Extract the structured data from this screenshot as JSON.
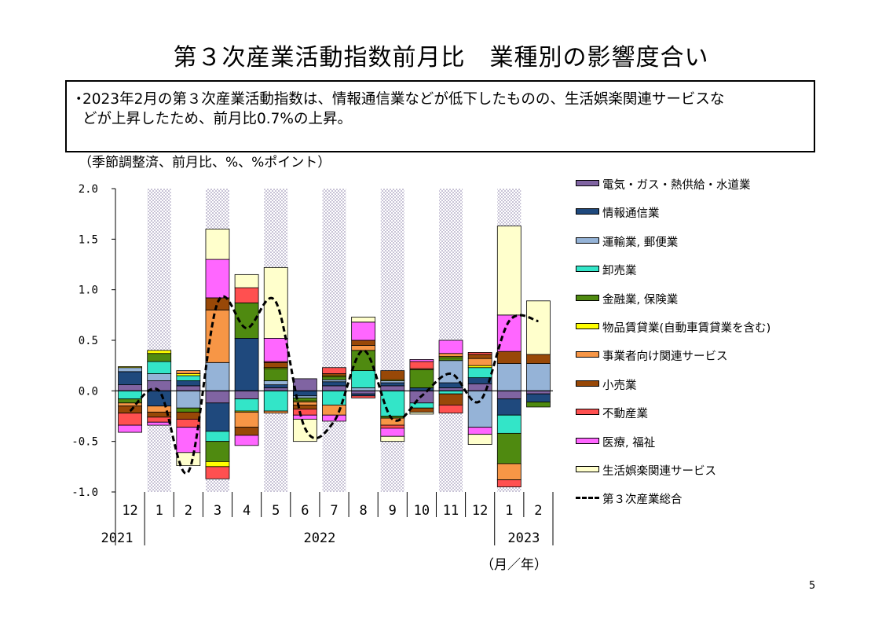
{
  "page": {
    "title": "第３次産業活動指数前月比　業種別の影響度合い",
    "summary_bullet": "・",
    "summary_line1": "2023年2月の第３次産業活動指数は、情報通信業などが低下したものの、生活娯楽関連サービスな",
    "summary_line2": "どが上昇したため、前月比0.7%の上昇。",
    "unit_label": "（季節調整済、前月比、%、%ポイント）",
    "month_unit": "（月／年）",
    "page_number": "5"
  },
  "chart_data": {
    "type": "bar",
    "stacked": true,
    "ylim": [
      -1.0,
      2.0
    ],
    "yticks": [
      "2.0",
      "1.5",
      "1.0",
      "0.5",
      "0.0",
      "-0.5",
      "-1.0"
    ],
    "ytick_values": [
      2.0,
      1.5,
      1.0,
      0.5,
      0.0,
      -0.5,
      -1.0
    ],
    "categories": [
      "12",
      "1",
      "2",
      "3",
      "4",
      "5",
      "6",
      "7",
      "8",
      "9",
      "10",
      "11",
      "12",
      "1",
      "2"
    ],
    "years": [
      {
        "label": "2021",
        "from": 0,
        "to": 0
      },
      {
        "label": "2022",
        "from": 1,
        "to": 12
      },
      {
        "label": "2023",
        "from": 13,
        "to": 14
      }
    ],
    "shaded_months": [
      1,
      3,
      5,
      7,
      9,
      11,
      13
    ],
    "legend_placement": "right",
    "series": [
      {
        "name": "電気・ガス・熱供給・水道業",
        "color": "#8064a2",
        "values": [
          0.06,
          0.1,
          0.05,
          -0.12,
          -0.08,
          0.03,
          0.12,
          0.05,
          -0.03,
          0.05,
          -0.12,
          0.03,
          0.07,
          -0.08,
          -0.03
        ]
      },
      {
        "name": "情報通信業",
        "color": "#1f497d",
        "values": [
          0.13,
          -0.15,
          0.05,
          -0.28,
          0.52,
          0.03,
          -0.05,
          0.04,
          -0.02,
          0.03,
          0.03,
          0.05,
          0.06,
          -0.16,
          -0.08
        ]
      },
      {
        "name": "運輸業, 郵便業",
        "color": "#95b3d7",
        "values": [
          0.04,
          0.07,
          -0.17,
          0.28,
          0.0,
          0.04,
          -0.02,
          0.02,
          0.03,
          0.02,
          0.0,
          0.22,
          -0.36,
          0.27,
          0.27
        ]
      },
      {
        "name": "卸売業",
        "color": "#33e5c8",
        "values": [
          -0.08,
          0.12,
          0.05,
          -0.1,
          -0.12,
          -0.2,
          0.0,
          -0.14,
          0.17,
          -0.25,
          -0.05,
          -0.03,
          0.1,
          -0.18,
          0.0
        ]
      },
      {
        "name": "金融業, 保険業",
        "color": "#4f8a10",
        "values": [
          -0.04,
          0.08,
          -0.04,
          -0.2,
          0.35,
          0.12,
          -0.03,
          0.03,
          0.2,
          -0.02,
          0.18,
          0.03,
          0.0,
          -0.3,
          -0.05
        ]
      },
      {
        "name": "物品賃貸業(自動車賃貸業を含む)",
        "color": "#ffff00",
        "values": [
          0.01,
          0.03,
          0.02,
          -0.05,
          -0.01,
          0.01,
          -0.01,
          0.01,
          0.0,
          0.01,
          0.0,
          0.01,
          0.02,
          0.0,
          0.0
        ]
      },
      {
        "name": "事業者向け関連サービス",
        "color": "#f79646",
        "values": [
          -0.03,
          -0.06,
          0.03,
          0.52,
          -0.15,
          -0.02,
          -0.03,
          -0.1,
          0.05,
          -0.07,
          0.01,
          0.03,
          0.07,
          -0.16,
          0.0
        ]
      },
      {
        "name": "小売業",
        "color": "#984807",
        "values": [
          -0.07,
          -0.05,
          -0.07,
          0.12,
          -0.08,
          0.05,
          -0.04,
          0.02,
          0.05,
          0.09,
          -0.04,
          -0.11,
          0.04,
          0.12,
          0.09
        ]
      },
      {
        "name": "不動産業",
        "color": "#ff5050",
        "values": [
          -0.12,
          -0.05,
          -0.08,
          -0.12,
          0.15,
          0.01,
          -0.06,
          0.06,
          -0.02,
          -0.03,
          0.07,
          -0.08,
          0.02,
          -0.07,
          0.0
        ]
      },
      {
        "name": "医療, 福祉",
        "color": "#ff66ff",
        "values": [
          -0.07,
          -0.03,
          -0.25,
          0.38,
          -0.1,
          0.23,
          -0.04,
          -0.06,
          0.18,
          -0.08,
          0.02,
          0.13,
          -0.07,
          0.36,
          0.0
        ]
      },
      {
        "name": "生活娯楽関連サービス",
        "color": "#ffffcc",
        "values": [
          0.0,
          0.0,
          -0.13,
          0.3,
          0.13,
          0.7,
          -0.22,
          0.0,
          0.05,
          -0.05,
          -0.02,
          0.0,
          -0.1,
          0.88,
          0.53
        ]
      }
    ],
    "total": {
      "name": "第３次産業総合",
      "values": [
        -0.2,
        0.0,
        -0.8,
        0.87,
        0.62,
        0.88,
        -0.37,
        -0.3,
        0.4,
        -0.28,
        -0.05,
        0.17,
        -0.1,
        0.69,
        0.69
      ]
    }
  }
}
